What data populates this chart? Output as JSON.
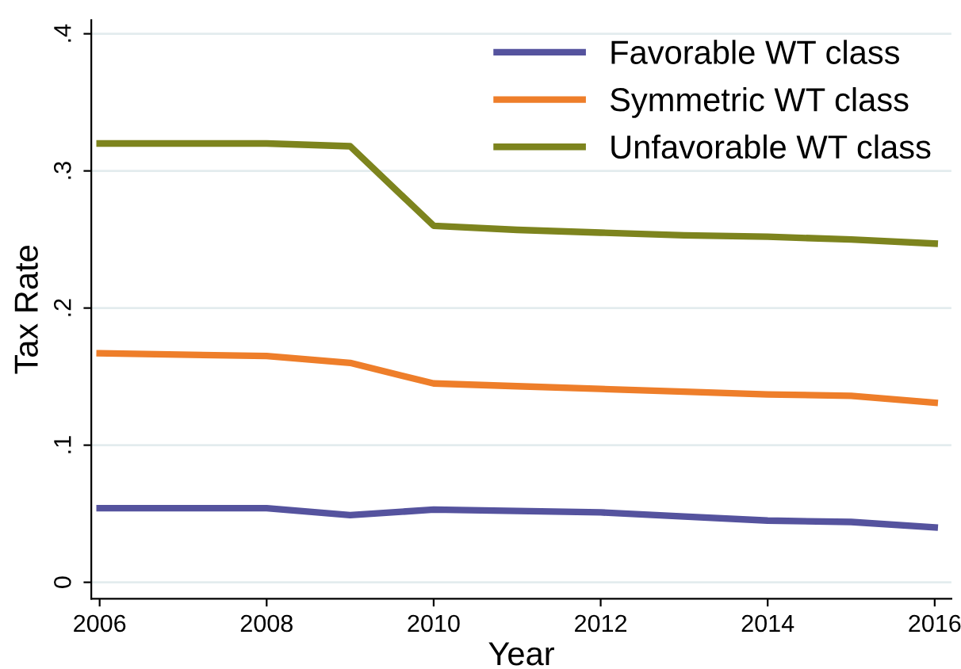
{
  "chart_data": {
    "type": "line",
    "xlabel": "Year",
    "ylabel": "Tax Rate",
    "x": [
      2006,
      2008,
      2009,
      2010,
      2011,
      2012,
      2013,
      2014,
      2015,
      2016
    ],
    "series": [
      {
        "name": "Favorable WT class",
        "color": "#55539e",
        "values": [
          0.054,
          0.054,
          0.049,
          0.053,
          0.052,
          0.051,
          0.048,
          0.045,
          0.044,
          0.04
        ]
      },
      {
        "name": "Symmetric WT class",
        "color": "#ee7e2a",
        "values": [
          0.167,
          0.165,
          0.16,
          0.145,
          0.143,
          0.141,
          0.139,
          0.137,
          0.136,
          0.131
        ]
      },
      {
        "name": "Unfavorable WT class",
        "color": "#7d841e",
        "values": [
          0.32,
          0.32,
          0.318,
          0.26,
          0.257,
          0.255,
          0.253,
          0.252,
          0.25,
          0.247
        ]
      }
    ],
    "xlim": [
      2005.9,
      2016.2
    ],
    "ylim": [
      -0.012,
      0.41
    ],
    "xticks": [
      2006,
      2008,
      2010,
      2012,
      2014,
      2016
    ],
    "yticks": [
      {
        "value": 0,
        "label": "0"
      },
      {
        "value": 0.1,
        "label": ".1"
      },
      {
        "value": 0.2,
        "label": ".2"
      },
      {
        "value": 0.3,
        "label": ".3"
      },
      {
        "value": 0.4,
        "label": ".4"
      }
    ],
    "grid": "y",
    "legend": "top right",
    "marker": "none",
    "line_style": "solid"
  }
}
